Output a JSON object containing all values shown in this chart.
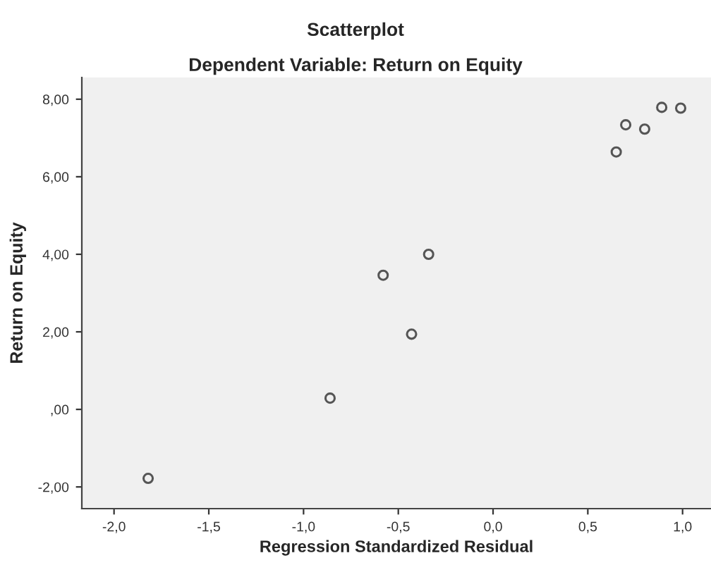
{
  "chart_data": {
    "type": "scatter",
    "title": "Scatterplot",
    "subtitle": "Dependent Variable: Return on Equity",
    "xlabel": "Regression Standardized Residual",
    "ylabel": "Return on Equity",
    "series": [
      {
        "color": "#555555",
        "x": [
          -1.82,
          -0.86,
          -0.43,
          -0.58,
          -0.34,
          0.65,
          0.7,
          0.8,
          0.89,
          0.99
        ],
        "values": [
          -1.78,
          0.29,
          1.94,
          3.46,
          4.0,
          6.64,
          7.34,
          7.23,
          7.79,
          7.77
        ]
      }
    ],
    "marker": "circle",
    "xlim": [
      -2.17,
      1.15
    ],
    "ylim": [
      -2.56,
      8.56
    ],
    "xticks": [
      {
        "value": -2,
        "label": "-2,0"
      },
      {
        "value": -1.5,
        "label": "-1,5"
      },
      {
        "value": -1,
        "label": "-1,0"
      },
      {
        "value": -0.5,
        "label": "-0,5"
      },
      {
        "value": 0,
        "label": "0,0"
      },
      {
        "value": 0.5,
        "label": "0,5"
      },
      {
        "value": 1,
        "label": "1,0"
      }
    ],
    "yticks": [
      {
        "value": -2,
        "label": "-2,00"
      },
      {
        "value": 0,
        "label": ",00"
      },
      {
        "value": 2,
        "label": "2,00"
      },
      {
        "value": 4,
        "label": "4,00"
      },
      {
        "value": 6,
        "label": "6,00"
      },
      {
        "value": 8,
        "label": "8,00"
      }
    ],
    "grid": false,
    "legend": false
  }
}
